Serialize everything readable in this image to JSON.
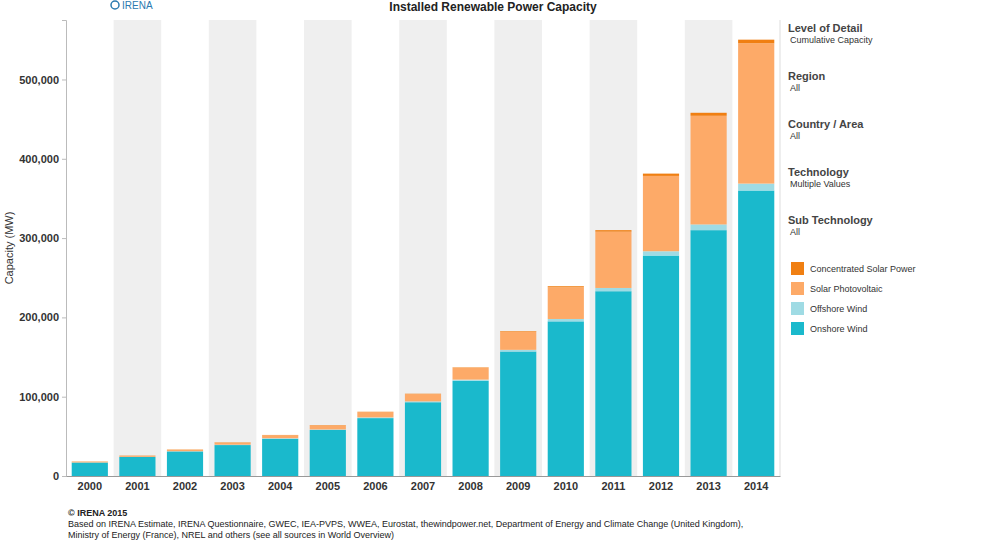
{
  "chart_data": {
    "type": "bar",
    "title": "Installed Renewable Power Capacity",
    "logo": "IRENA",
    "y_label": "Capacity (MW)",
    "stacked": true,
    "grid": false,
    "legend": "right",
    "categories": [
      "2000",
      "2001",
      "2002",
      "2003",
      "2004",
      "2005",
      "2006",
      "2007",
      "2008",
      "2009",
      "2010",
      "2011",
      "2012",
      "2013",
      "2014"
    ],
    "series": [
      {
        "name": "Onshore Wind",
        "color": "#1ab9cc",
        "values": [
          17000,
          24000,
          31000,
          39000,
          47000,
          58000,
          73000,
          93000,
          120000,
          157000,
          195000,
          233000,
          278000,
          310000,
          360000
        ]
      },
      {
        "name": "Offshore Wind",
        "color": "#9fdbe4",
        "values": [
          100,
          150,
          250,
          500,
          600,
          700,
          900,
          1100,
          1500,
          2100,
          3000,
          4100,
          5400,
          7200,
          8700
        ]
      },
      {
        "name": "Solar Photovoltaic",
        "color": "#fdaa68",
        "values": [
          800,
          1200,
          1800,
          2600,
          3800,
          5200,
          6700,
          9200,
          15000,
          23000,
          40000,
          71000,
          95000,
          137000,
          177000
        ]
      },
      {
        "name": "Concentrated Solar Power",
        "color": "#f07f12",
        "values": [
          350,
          350,
          360,
          360,
          370,
          380,
          400,
          430,
          500,
          700,
          1300,
          1900,
          2900,
          3800,
          4500
        ]
      }
    ],
    "ylim": [
      0,
      575000
    ],
    "yticks": [
      0,
      {
        "value": 100000,
        "label": "100,000"
      },
      {
        "value": 200000,
        "label": "200,000"
      },
      {
        "value": 300000,
        "label": "300,000"
      },
      {
        "value": 400000,
        "label": "400,000"
      },
      {
        "value": 500000,
        "label": "500,000"
      }
    ],
    "filters": [
      {
        "label": "Level of Detail",
        "value": "Cumulative Capacity"
      },
      {
        "label": "Region",
        "value": "All"
      },
      {
        "label": "Country / Area",
        "value": "All"
      },
      {
        "label": "Technology",
        "value": "Multiple Values"
      },
      {
        "label": "Sub Technology",
        "value": "All"
      }
    ],
    "source": [
      "© IRENA 2015",
      "Based on IRENA Estimate, IRENA Questionnaire, GWEC, IEA-PVPS, WWEA, Eurostat, thewindpower.net, Department of Energy and Climate Change (United Kingdom),",
      "Ministry of Energy (France), NREL and others (see all sources in World Overview)"
    ]
  }
}
